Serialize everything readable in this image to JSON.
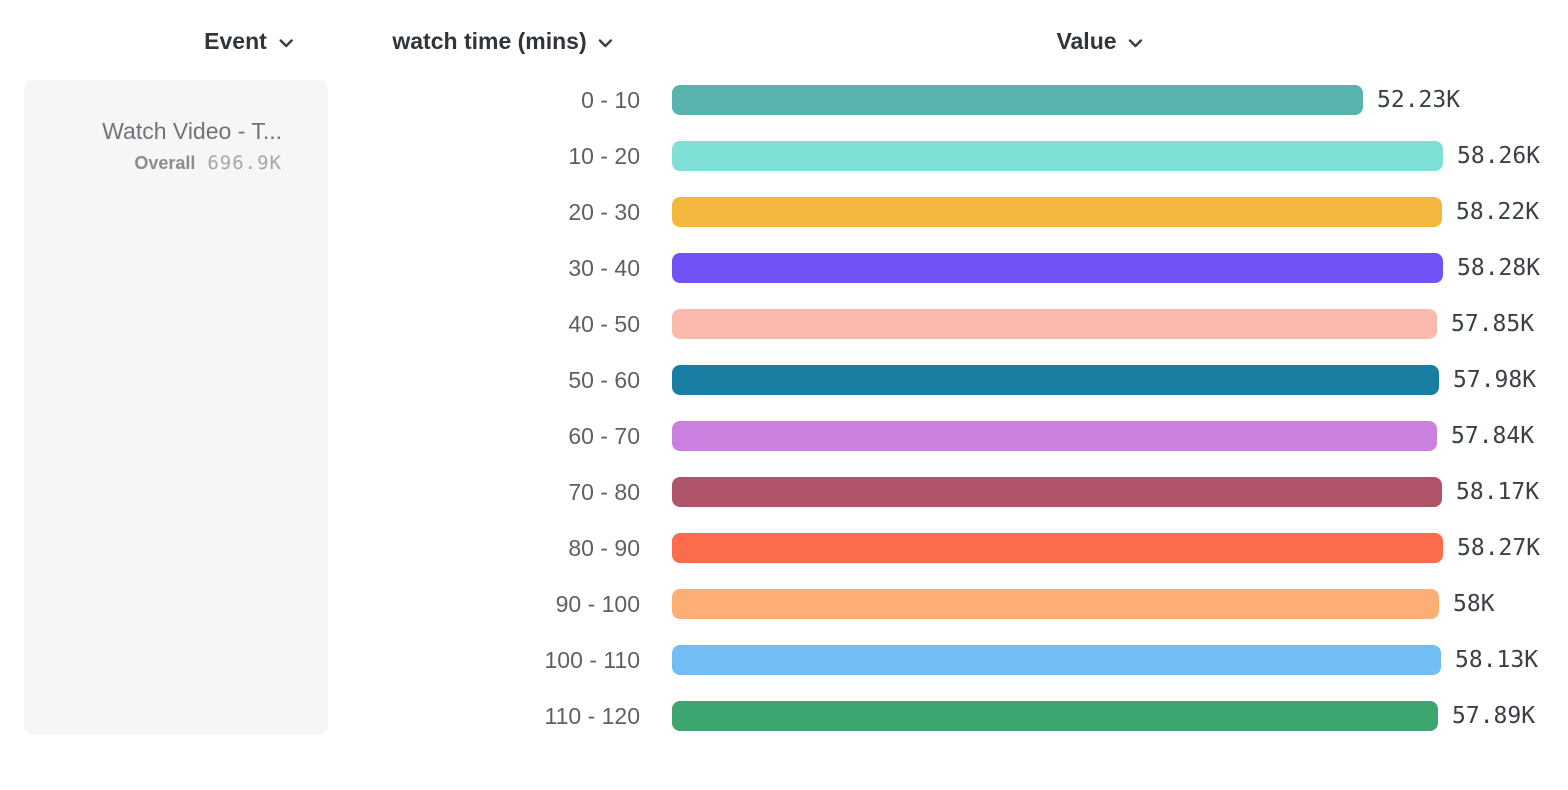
{
  "header": {
    "columns": [
      {
        "label": "Event"
      },
      {
        "label": "watch time (mins)"
      },
      {
        "label": "Value"
      }
    ]
  },
  "event_card": {
    "title": "Watch Video - T...",
    "overall_label": "Overall",
    "overall_value": "696.9K"
  },
  "chart_data": {
    "type": "bar",
    "orientation": "horizontal",
    "title": "",
    "xlabel": "Value",
    "ylabel": "watch time (mins)",
    "xlim": [
      0,
      58280
    ],
    "grid": false,
    "categories": [
      "0 - 10",
      "10 - 20",
      "20 - 30",
      "30 - 40",
      "40 - 50",
      "50 - 60",
      "60 - 70",
      "70 - 80",
      "80 - 90",
      "90 - 100",
      "100 - 110",
      "110 - 120"
    ],
    "values": [
      52230,
      58260,
      58220,
      58280,
      57850,
      57980,
      57840,
      58170,
      58270,
      58000,
      58130,
      57890
    ],
    "value_labels": [
      "52.23K",
      "58.26K",
      "58.22K",
      "58.28K",
      "57.85K",
      "57.98K",
      "57.84K",
      "58.17K",
      "58.27K",
      "58K",
      "58.13K",
      "57.89K"
    ],
    "colors": [
      "#58B3AC",
      "#7FE0D5",
      "#F5B63E",
      "#7152F5",
      "#FBBAAE",
      "#187FA2",
      "#C980DE",
      "#B05469",
      "#FB6C4C",
      "#FCAE74",
      "#72BDF4",
      "#3DA56F"
    ]
  }
}
